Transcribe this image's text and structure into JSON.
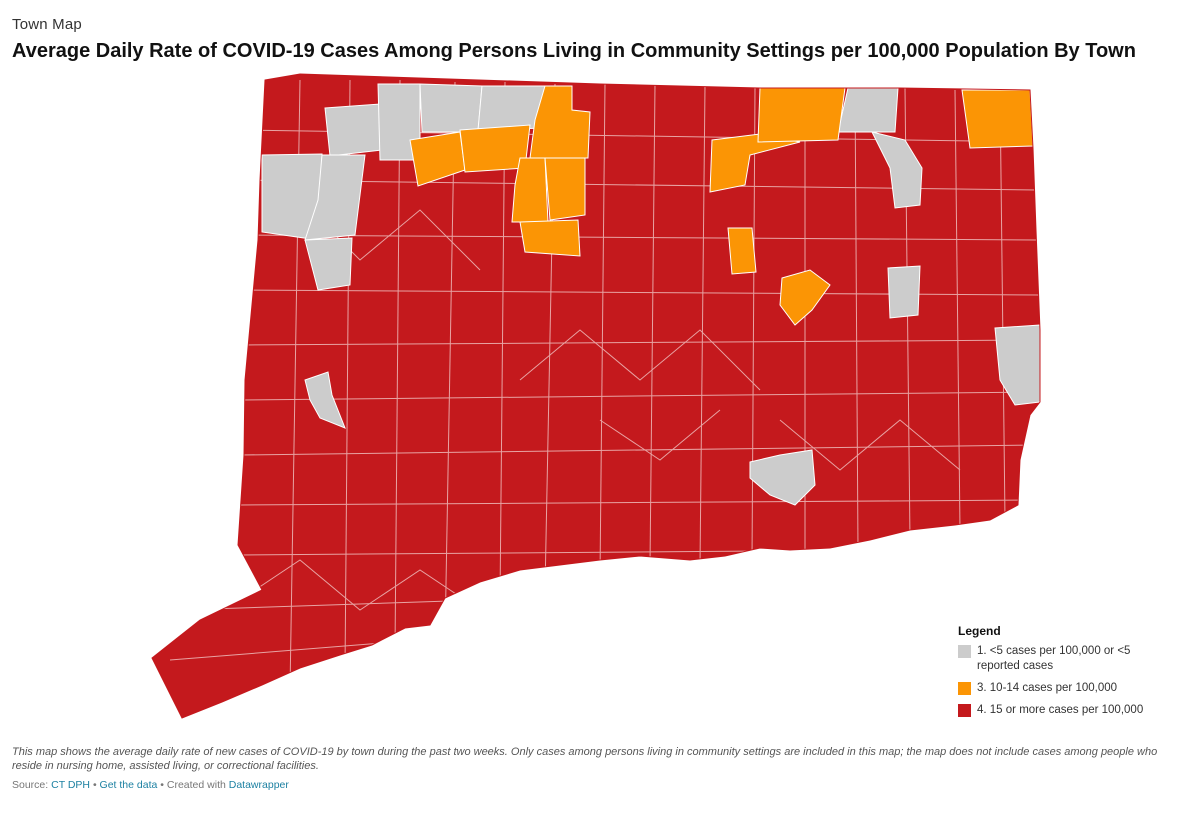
{
  "header": {
    "kicker": "Town Map",
    "title": "Average Daily Rate of COVID-19 Cases Among Persons Living in Community Settings per 100,000 Population By Town"
  },
  "legend": {
    "title": "Legend",
    "items": [
      {
        "label": "1. <5 cases per 100,000 or <5 reported cases",
        "color": "#cccccc"
      },
      {
        "label": "3. 10-14 cases per 100,000",
        "color": "#fb9505"
      },
      {
        "label": "4. 15 or more cases per 100,000",
        "color": "#c4191d"
      }
    ]
  },
  "map": {
    "region": "Connecticut",
    "colors": {
      "red": "#c4191d",
      "orange": "#fb9505",
      "gray": "#cccccc",
      "border": "#e8a3a3"
    }
  },
  "footer": {
    "notes": "This map shows the average daily rate of new cases of COVID-19 by town during the past two weeks. Only cases among persons living in community settings are included in this map; the map does not include cases among people who reside in nursing home, assisted living, or correctional facilities.",
    "source_prefix": "Source:",
    "source_name": "CT DPH",
    "separator1": "•",
    "get_data": "Get the data",
    "separator2": "•",
    "created_with": "Created with",
    "tool": "Datawrapper"
  }
}
